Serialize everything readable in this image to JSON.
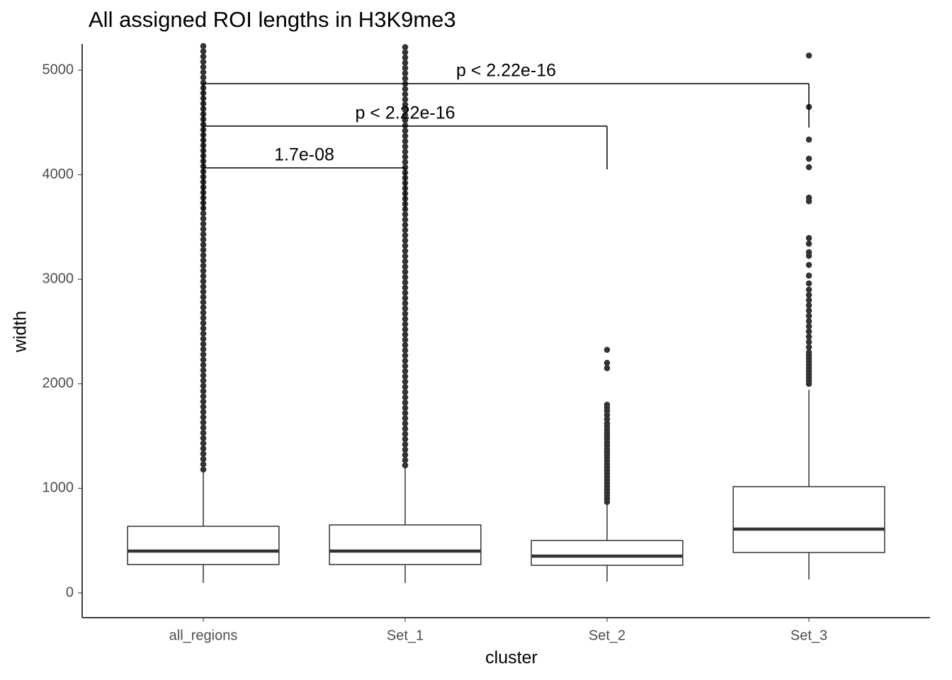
{
  "chart_data": {
    "type": "boxplot",
    "title": "All assigned ROI lengths in H3K9me3",
    "x_label": "cluster",
    "y_label": "width",
    "categories": [
      "all_regions",
      "Set_1",
      "Set_2",
      "Set_3"
    ],
    "color": "#333333",
    "ylim": [
      -237,
      5251
    ],
    "yticks": [
      0,
      1000,
      2000,
      3000,
      4000,
      5000
    ],
    "grid": false,
    "boxes": [
      {
        "low": 95,
        "q1": 271,
        "median": 400,
        "q3": 637,
        "high": 1165,
        "outliers": [
          1180,
          1230,
          1280,
          1330,
          1380,
          1430,
          1480,
          1530,
          1580,
          1630,
          1680,
          1730,
          1780,
          1830,
          1880,
          1930,
          1980,
          2030,
          2080,
          2130,
          2180,
          2230,
          2280,
          2330,
          2380,
          2430,
          2480,
          2530,
          2580,
          2630,
          2680,
          2730,
          2780,
          2830,
          2880,
          2930,
          2980,
          3030,
          3080,
          3130,
          3180,
          3230,
          3280,
          3330,
          3380,
          3430,
          3480,
          3530,
          3580,
          3630,
          3680,
          3730,
          3780,
          3830,
          3880,
          3930,
          3980,
          4030,
          4080,
          4130,
          4180,
          4230,
          4280,
          4330,
          4380,
          4430,
          4480,
          4530,
          4580,
          4630,
          4680,
          4730,
          4780,
          4830,
          4880,
          4930,
          4980,
          5030,
          5080,
          5130,
          5180,
          5230
        ]
      },
      {
        "low": 95,
        "q1": 271,
        "median": 400,
        "q3": 650,
        "high": 1200,
        "outliers": [
          1220,
          1270,
          1320,
          1370,
          1420,
          1470,
          1520,
          1570,
          1620,
          1670,
          1720,
          1770,
          1820,
          1870,
          1920,
          1970,
          2020,
          2070,
          2120,
          2170,
          2220,
          2270,
          2320,
          2370,
          2420,
          2470,
          2520,
          2570,
          2620,
          2670,
          2720,
          2770,
          2820,
          2870,
          2920,
          2970,
          3020,
          3070,
          3120,
          3170,
          3220,
          3270,
          3320,
          3370,
          3420,
          3470,
          3520,
          3570,
          3620,
          3670,
          3720,
          3770,
          3820,
          3870,
          3920,
          3970,
          4020,
          4070,
          4120,
          4170,
          4220,
          4270,
          4320,
          4370,
          4420,
          4470,
          4520,
          4570,
          4620,
          4670,
          4720,
          4770,
          4820,
          4870,
          4920,
          4970,
          5020,
          5070,
          5120,
          5170,
          5220
        ]
      },
      {
        "low": 108,
        "q1": 264,
        "median": 352,
        "q3": 501,
        "high": 847,
        "outliers": [
          870,
          900,
          930,
          960,
          990,
          1020,
          1050,
          1080,
          1110,
          1140,
          1170,
          1200,
          1230,
          1260,
          1290,
          1320,
          1350,
          1380,
          1410,
          1440,
          1470,
          1500,
          1530,
          1560,
          1590,
          1620,
          1660,
          1700,
          1740,
          1770,
          1800,
          2150,
          2200,
          2325
        ]
      },
      {
        "low": 129,
        "q1": 386,
        "median": 610,
        "q3": 1016,
        "high": 1944,
        "outliers": [
          2000,
          2030,
          2060,
          2090,
          2120,
          2150,
          2180,
          2210,
          2240,
          2270,
          2300,
          2350,
          2400,
          2450,
          2500,
          2550,
          2600,
          2650,
          2700,
          2750,
          2800,
          2850,
          2900,
          2960,
          3035,
          3137,
          3225,
          3259,
          3340,
          3394,
          3746,
          3780,
          4072,
          4153,
          4336,
          4648,
          5140
        ]
      }
    ],
    "comparisons": [
      {
        "from": 0,
        "to": 1,
        "label": "1.7e-08",
        "y": 4065,
        "tips": [
          3659,
          3659
        ]
      },
      {
        "from": 0,
        "to": 2,
        "label": "p < 2.22e-16",
        "y": 4465,
        "tips": [
          3659,
          4051
        ]
      },
      {
        "from": 0,
        "to": 3,
        "label": "p < 2.22e-16",
        "y": 4871,
        "tips": [
          3659,
          4451
        ]
      }
    ]
  }
}
